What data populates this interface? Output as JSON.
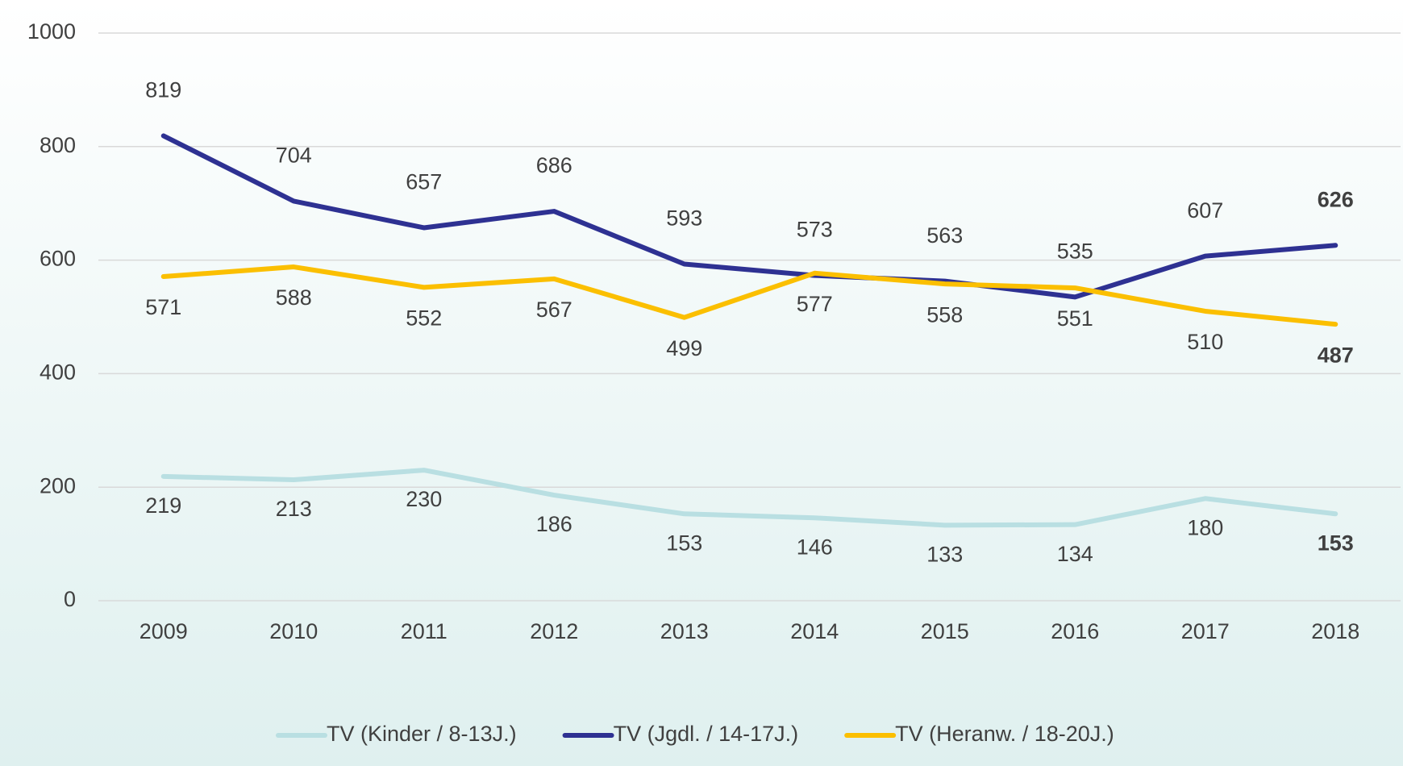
{
  "chart_data": {
    "type": "line",
    "categories": [
      "2009",
      "2010",
      "2011",
      "2012",
      "2013",
      "2014",
      "2015",
      "2016",
      "2017",
      "2018"
    ],
    "series": [
      {
        "name": "TV (Kinder / 8-13J.)",
        "color": "#b9dfe2",
        "values": [
          219,
          213,
          230,
          186,
          153,
          146,
          133,
          134,
          180,
          153
        ]
      },
      {
        "name": "TV (Jgdl. / 14-17J.)",
        "color": "#2e3192",
        "values": [
          819,
          704,
          657,
          686,
          593,
          573,
          563,
          535,
          607,
          626
        ]
      },
      {
        "name": "TV (Heranw. / 18-20J.)",
        "color": "#fbbf00",
        "values": [
          571,
          588,
          552,
          567,
          499,
          577,
          558,
          551,
          510,
          487
        ]
      }
    ],
    "ylim": [
      0,
      1000
    ],
    "yticks": [
      0,
      200,
      400,
      600,
      800,
      1000
    ],
    "grid": true,
    "legend": "bottom"
  }
}
